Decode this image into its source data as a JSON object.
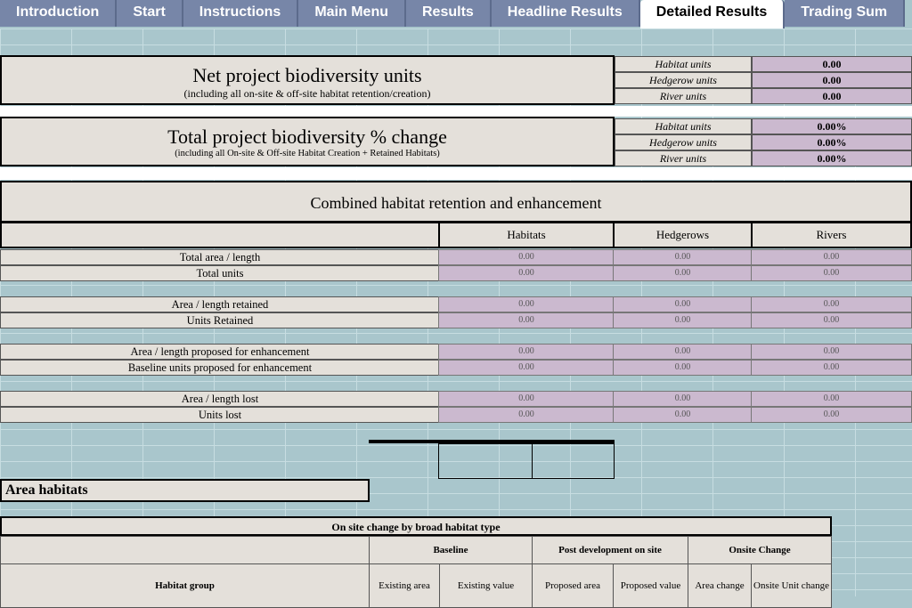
{
  "tabs": [
    "Introduction",
    "Start",
    "Instructions",
    "Main Menu",
    "Results",
    "Headline Results",
    "Detailed Results",
    "Trading Sum"
  ],
  "active_tab": "Detailed Results",
  "net": {
    "title": "Net project biodiversity units",
    "subtitle": "(including all on-site & off-site habitat retention/creation)",
    "rows": [
      {
        "label": "Habitat units",
        "value": "0.00"
      },
      {
        "label": "Hedgerow units",
        "value": "0.00"
      },
      {
        "label": "River units",
        "value": "0.00"
      }
    ]
  },
  "pct": {
    "title": "Total project biodiversity % change",
    "subtitle": "(including all On-site & Off-site Habitat Creation + Retained Habitats)",
    "rows": [
      {
        "label": "Habitat units",
        "value": "0.00%"
      },
      {
        "label": "Hedgerow units",
        "value": "0.00%"
      },
      {
        "label": "River units",
        "value": "0.00%"
      }
    ]
  },
  "combined": {
    "title": "Combined habitat retention and enhancement",
    "columns": [
      "Habitats",
      "Hedgerows",
      "Rivers"
    ],
    "rows": [
      {
        "label": "Total area / length",
        "values": [
          "0.00",
          "0.00",
          "0.00"
        ]
      },
      {
        "label": "Total units",
        "values": [
          "0.00",
          "0.00",
          "0.00"
        ]
      },
      {
        "label": "Area / length retained",
        "values": [
          "0.00",
          "0.00",
          "0.00"
        ]
      },
      {
        "label": "Units Retained",
        "values": [
          "0.00",
          "0.00",
          "0.00"
        ]
      },
      {
        "label": "Area / length proposed for enhancement",
        "values": [
          "0.00",
          "0.00",
          "0.00"
        ]
      },
      {
        "label": "Baseline units proposed for enhancement",
        "values": [
          "0.00",
          "0.00",
          "0.00"
        ]
      },
      {
        "label": "Area / length lost",
        "values": [
          "0.00",
          "0.00",
          "0.00"
        ]
      },
      {
        "label": "Units lost",
        "values": [
          "0.00",
          "0.00",
          "0.00"
        ]
      }
    ]
  },
  "area": {
    "section_title": "Area habitats",
    "table_title": "On site change by broad habitat type",
    "groups": [
      "Baseline",
      "Post development on site",
      "Onsite Change"
    ],
    "first_col": "Habitat group",
    "subcols": [
      "Existing area",
      "Existing value",
      "Proposed area",
      "Proposed value",
      "Area change",
      "Onsite Unit change"
    ]
  }
}
